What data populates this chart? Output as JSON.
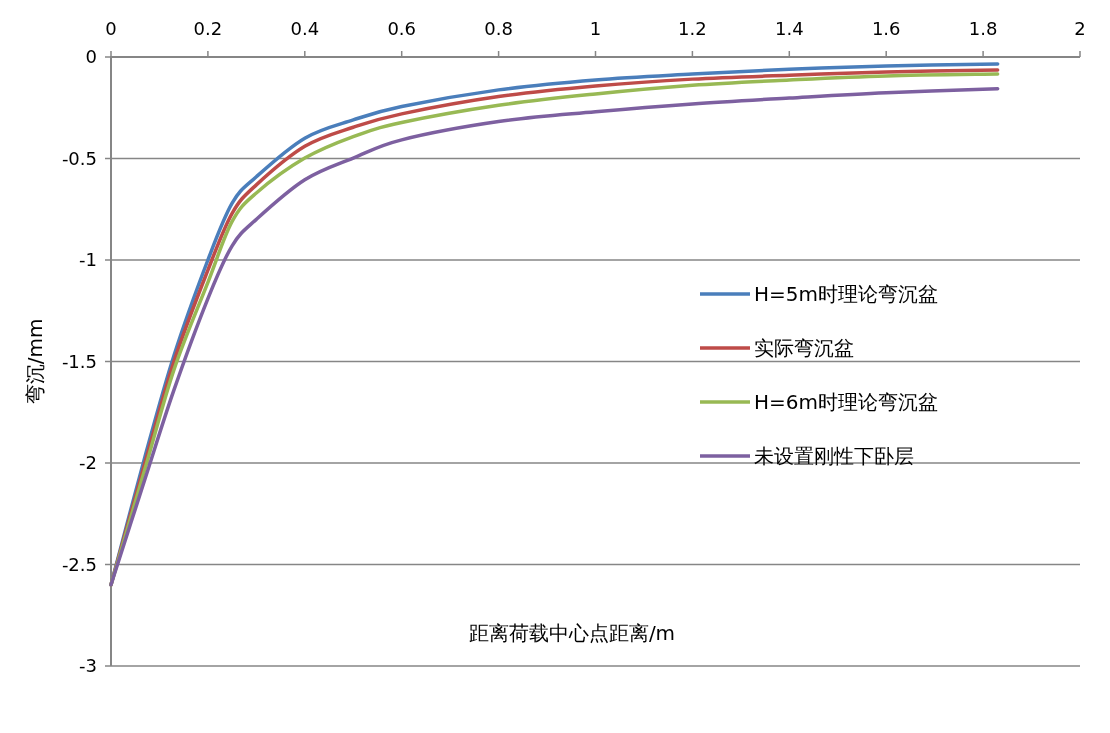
{
  "chart_data": {
    "type": "line",
    "xlabel": "距离荷载中心点距离/m",
    "ylabel": "弯沉/mm",
    "x": [
      0,
      0.07,
      0.13,
      0.2,
      0.25,
      0.3,
      0.4,
      0.5,
      0.6,
      0.8,
      1.0,
      1.2,
      1.4,
      1.6,
      1.83
    ],
    "series": [
      {
        "name": "H=5m时理论弯沉盆",
        "color": "#4a7ebb",
        "values": [
          -2.6,
          -1.97,
          -1.47,
          -1.0,
          -0.72,
          -0.59,
          -0.4,
          -0.31,
          -0.244,
          -0.162,
          -0.113,
          -0.084,
          -0.06,
          -0.044,
          -0.034
        ]
      },
      {
        "name": "实际弯沉盆",
        "color": "#be4b48",
        "values": [
          -2.6,
          -2.0,
          -1.5,
          -1.05,
          -0.77,
          -0.63,
          -0.44,
          -0.346,
          -0.28,
          -0.195,
          -0.143,
          -0.109,
          -0.09,
          -0.074,
          -0.064
        ]
      },
      {
        "name": "H=6m时理论弯沉盆",
        "color": "#98b954",
        "values": [
          -2.6,
          -2.03,
          -1.54,
          -1.11,
          -0.81,
          -0.67,
          -0.498,
          -0.392,
          -0.323,
          -0.238,
          -0.182,
          -0.139,
          -0.113,
          -0.093,
          -0.084
        ]
      },
      {
        "name": "未设置刚性下卧层",
        "color": "#7d60a0",
        "values": [
          -2.6,
          -2.08,
          -1.64,
          -1.19,
          -0.93,
          -0.8,
          -0.605,
          -0.498,
          -0.408,
          -0.318,
          -0.27,
          -0.231,
          -0.202,
          -0.176,
          -0.156
        ]
      }
    ],
    "xlim": [
      0,
      2
    ],
    "xticks": [
      0,
      0.2,
      0.4,
      0.6,
      0.8,
      1,
      1.2,
      1.4,
      1.6,
      1.8,
      2
    ],
    "ylim": [
      -3,
      0
    ],
    "yticks": [
      0,
      -0.5,
      -1,
      -1.5,
      -2,
      -2.5,
      -3
    ],
    "grid": "y",
    "legend": "right",
    "marker": "none",
    "line_style": "solid"
  }
}
